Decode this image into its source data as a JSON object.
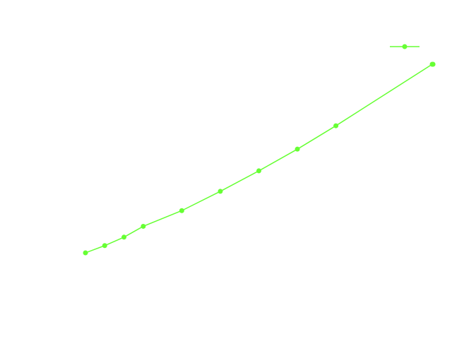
{
  "chart_data": {
    "type": "line",
    "title": "",
    "xlabel": "",
    "ylabel": "",
    "xlim": [
      0,
      11
    ],
    "ylim": [
      0,
      14
    ],
    "grid": false,
    "legend": {
      "position": "top-right",
      "entries": [
        ""
      ]
    },
    "series": [
      {
        "name": "",
        "color": "#66ff33",
        "marker": "circle",
        "x": [
          0,
          0.5,
          1,
          1.5,
          2.5,
          3.5,
          4.5,
          5.5,
          6.5,
          9,
          9.02
        ],
        "y": [
          4.0,
          4.3,
          4.65,
          5.1,
          5.75,
          6.55,
          7.4,
          8.3,
          9.27,
          11.82,
          11.82
        ]
      }
    ]
  }
}
